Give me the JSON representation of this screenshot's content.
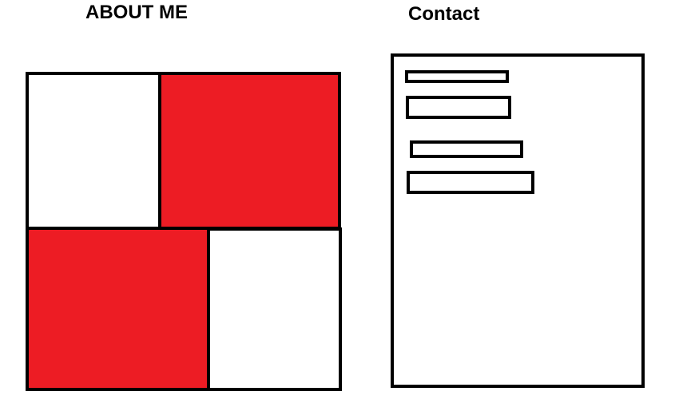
{
  "about": {
    "heading": "ABOUT ME",
    "blocks": [
      {
        "position": "top-left",
        "color": "#ffffff"
      },
      {
        "position": "top-right",
        "color": "#ed1c24"
      },
      {
        "position": "bottom-left",
        "color": "#ed1c24"
      },
      {
        "position": "bottom-right",
        "color": "#ffffff"
      }
    ]
  },
  "contact": {
    "heading": "Contact",
    "fields": [
      {
        "value": "",
        "placeholder": ""
      },
      {
        "value": "",
        "placeholder": ""
      },
      {
        "value": "",
        "placeholder": ""
      },
      {
        "value": "",
        "placeholder": ""
      }
    ]
  },
  "colors": {
    "accent": "#ed1c24",
    "border": "#000000",
    "background": "#ffffff"
  }
}
